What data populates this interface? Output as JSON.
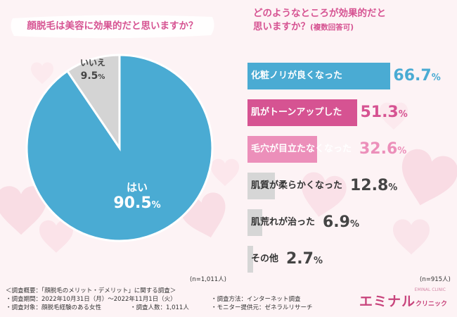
{
  "chart_data": [
    {
      "type": "pie",
      "title": "顔脱毛は美容に効果的だと思いますか？",
      "slices": [
        {
          "label": "はい",
          "value": 90.5,
          "color": "#4aabd3"
        },
        {
          "label": "いいえ",
          "value": 9.5,
          "color": "#d4d4d4"
        }
      ],
      "sample_note": "(n=1,011人)"
    },
    {
      "type": "bar",
      "orientation": "horizontal",
      "title_line1": "どのようなところが効果的だと",
      "title_line2": "思いますか？",
      "title_note": "(複数回答可)",
      "categories": [
        "化粧ノリが良くなった",
        "肌がトーンアップした",
        "毛穴が目立たなくなった",
        "肌質が柔らかくなった",
        "肌荒れが治った",
        "その他"
      ],
      "values": [
        66.7,
        51.3,
        32.6,
        12.8,
        6.9,
        2.7
      ],
      "value_labels": [
        "66.7",
        "51.3",
        "32.6",
        "12.8",
        "6.9",
        "2.7"
      ],
      "colors": [
        "#4aabd3",
        "#d65392",
        "#ec8fba",
        "#d6d6d6",
        "#d6d6d6",
        "#d6d6d6"
      ],
      "value_colors": [
        "#4aabd3",
        "#d65392",
        "#ec8fba",
        "#444444",
        "#444444",
        "#444444"
      ],
      "label_colors": [
        "#ffffff",
        "#ffffff",
        "#ffffff",
        "#333333",
        "#333333",
        "#333333"
      ],
      "unit": "%",
      "sample_note": "(n=915人)"
    }
  ],
  "footer": {
    "overview": "＜調査概要：「顔脱毛のメリット・デメリット」に関する調査＞",
    "period": "・調査期間：2022年10月31日（月）～2022年11月1日（火）",
    "method": "・調査方法：インターネット調査",
    "target": "・調査対象：顔脱毛経験のある女性",
    "count": "・調査人数：1,011人",
    "provider": "・モニター提供元：ゼネラルリサーチ"
  },
  "logo": {
    "main": "エミナル",
    "sub": "クリニック",
    "tiny": "EMINAL CLINIC"
  },
  "colors": {
    "title_pink": "#d65392",
    "blue": "#4aabd3",
    "gray": "#d4d4d4",
    "text": "#444444"
  }
}
